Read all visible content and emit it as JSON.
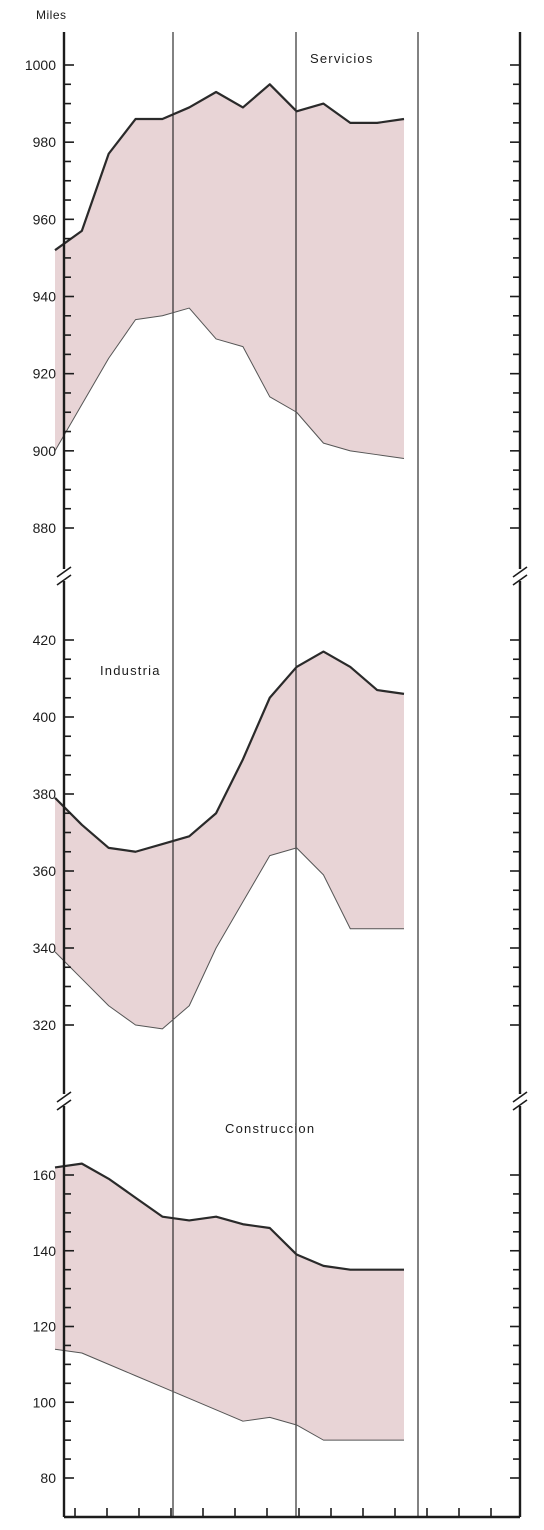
{
  "chart_data": {
    "type": "area",
    "unit_label": "Miles",
    "x_points": 14,
    "colors": {
      "band": "#e8d4d6",
      "line": "#2a2a2a",
      "axis": "#1c1c1c"
    },
    "panels": [
      {
        "name": "Servicios",
        "ylim": [
          875,
          1005
        ],
        "ticks": [
          1000,
          980,
          960,
          940,
          920,
          900,
          880
        ],
        "tick_labels": [
          "1000",
          "980",
          "960",
          "940",
          "920",
          "900",
          "880"
        ],
        "upper": [
          952,
          957,
          977,
          986,
          986,
          989,
          993,
          989,
          995,
          988,
          990,
          985,
          985,
          986
        ],
        "lower": [
          900,
          912,
          924,
          934,
          935,
          937,
          929,
          927,
          914,
          910,
          902,
          900,
          899,
          898
        ]
      },
      {
        "name": "Industria",
        "ylim": [
          300,
          430
        ],
        "ticks": [
          420,
          400,
          380,
          360,
          340,
          320
        ],
        "tick_labels": [
          "420",
          "400",
          "380",
          "360",
          "340",
          "320"
        ],
        "upper": [
          379,
          372,
          366,
          365,
          367,
          369,
          375,
          389,
          405,
          413,
          417,
          413,
          407,
          406
        ],
        "lower": [
          339,
          332,
          325,
          320,
          319,
          325,
          340,
          352,
          364,
          366,
          359,
          345,
          345,
          345
        ]
      },
      {
        "name": "Construccion",
        "ylim": [
          75,
          173
        ],
        "ticks": [
          160,
          140,
          120,
          100,
          80
        ],
        "tick_labels": [
          "160",
          "140",
          "120",
          "100",
          "80"
        ],
        "upper": [
          162,
          163,
          159,
          154,
          149,
          148,
          149,
          147,
          146,
          139,
          136,
          135,
          135,
          135
        ],
        "lower": [
          114,
          113,
          110,
          107,
          104,
          101,
          98,
          95,
          96,
          94,
          90,
          90,
          90,
          90
        ]
      }
    ]
  }
}
